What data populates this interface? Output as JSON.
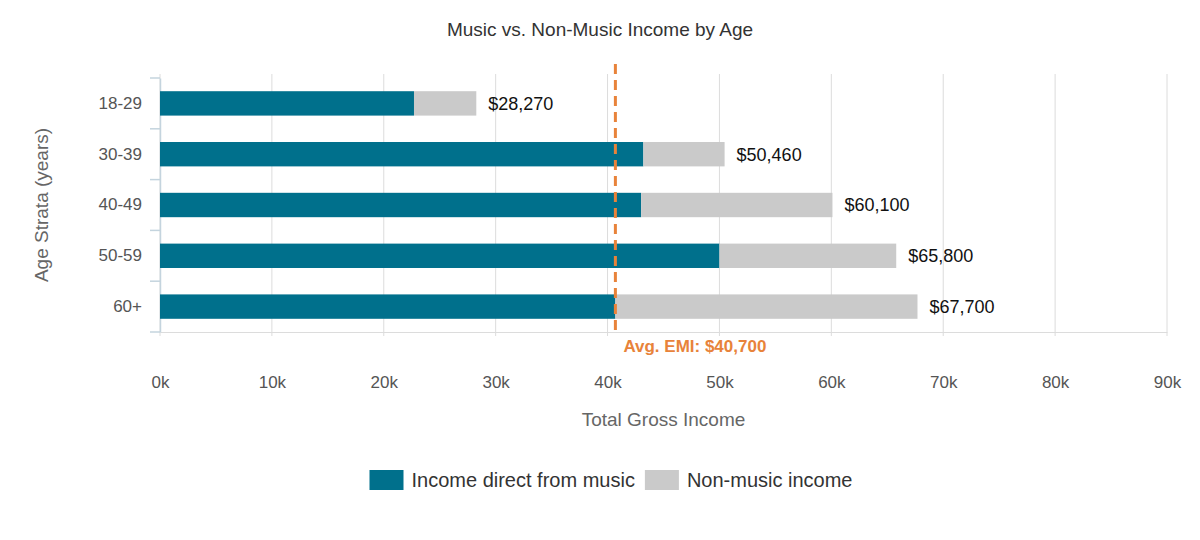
{
  "chart_data": {
    "type": "bar",
    "title": "Music vs. Non-Music Income by Age",
    "orientation": "horizontal",
    "stacked": true,
    "grid": true,
    "legend": "bottom",
    "x_label": "Total Gross Income",
    "y_label": "Age Strata (years)",
    "categories": [
      "18-29",
      "30-39",
      "40-49",
      "50-59",
      "60+"
    ],
    "series": [
      {
        "name": "Income direct from music",
        "color": "#00708c",
        "values": [
          22700,
          43200,
          43000,
          50000,
          40700
        ]
      },
      {
        "name": "Non-music income",
        "color": "#cacaca",
        "values": [
          5570,
          7260,
          17100,
          15800,
          27000
        ]
      }
    ],
    "totals": [
      28270,
      50460,
      60100,
      65800,
      67700
    ],
    "total_labels": [
      "$28,270",
      "$50,460",
      "$60,100",
      "$65,800",
      "$67,700"
    ],
    "xlim": [
      0,
      90000
    ],
    "xticks": [
      {
        "value": 0,
        "label": "0k"
      },
      {
        "value": 10000,
        "label": "10k"
      },
      {
        "value": 20000,
        "label": "20k"
      },
      {
        "value": 30000,
        "label": "30k"
      },
      {
        "value": 40000,
        "label": "40k"
      },
      {
        "value": 50000,
        "label": "50k"
      },
      {
        "value": 60000,
        "label": "60k"
      },
      {
        "value": 70000,
        "label": "70k"
      },
      {
        "value": 80000,
        "label": "80k"
      },
      {
        "value": 90000,
        "label": "90k"
      }
    ],
    "reference_line": {
      "value": 40700,
      "label": "Avg. EMI: $40,700",
      "color": "#e8833a"
    }
  }
}
